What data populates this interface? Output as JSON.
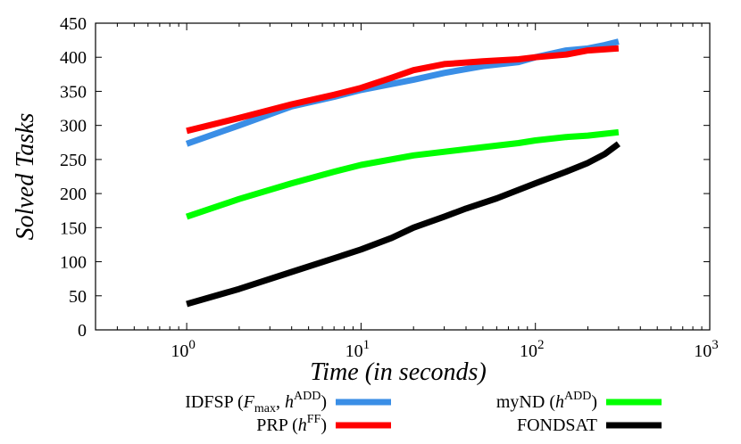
{
  "chart_data": {
    "type": "line",
    "title": "",
    "xlabel": "Time (in seconds)",
    "ylabel": "Solved Tasks",
    "xscale": "log",
    "xlim": [
      0.3,
      1000
    ],
    "ylim": [
      0,
      450
    ],
    "xticks": [
      {
        "value": 1,
        "base": "10",
        "exp": "0"
      },
      {
        "value": 10,
        "base": "10",
        "exp": "1"
      },
      {
        "value": 100,
        "base": "10",
        "exp": "2"
      },
      {
        "value": 1000,
        "base": "10",
        "exp": "3"
      }
    ],
    "yticks": [
      0,
      50,
      100,
      150,
      200,
      250,
      300,
      350,
      400,
      450
    ],
    "grid": false,
    "legend_position": "bottom",
    "series": [
      {
        "name": "IDFSP (Fmax, hADD)",
        "legend_parts": [
          "IDFSP (",
          "F",
          "max",
          ", ",
          "h",
          "ADD",
          ")"
        ],
        "color": "#3a8ee6",
        "x": [
          1,
          2,
          4,
          7,
          10,
          20,
          30,
          50,
          80,
          100,
          150,
          200,
          250,
          300
        ],
        "y": [
          273,
          300,
          328,
          342,
          352,
          367,
          377,
          387,
          393,
          400,
          410,
          413,
          418,
          423
        ]
      },
      {
        "name": "PRP (hFF)",
        "legend_parts": [
          "PRP (",
          "h",
          "FF",
          ")"
        ],
        "color": "#ff0000",
        "x": [
          1,
          2,
          4,
          7,
          10,
          15,
          20,
          30,
          50,
          80,
          100,
          150,
          200,
          300
        ],
        "y": [
          292,
          311,
          331,
          345,
          355,
          370,
          381,
          390,
          394,
          397,
          400,
          404,
          410,
          413
        ]
      },
      {
        "name": "myND (hADD)",
        "legend_parts": [
          "myND (",
          "h",
          "ADD",
          ")"
        ],
        "color": "#00ff00",
        "x": [
          1,
          2,
          4,
          7,
          10,
          20,
          50,
          80,
          100,
          150,
          200,
          300
        ],
        "y": [
          166,
          192,
          215,
          232,
          242,
          256,
          268,
          274,
          278,
          283,
          285,
          290
        ]
      },
      {
        "name": "FONDSAT",
        "legend_parts": [
          "FONDSAT"
        ],
        "color": "#000000",
        "x": [
          1,
          2,
          4,
          7,
          10,
          15,
          20,
          30,
          40,
          60,
          100,
          150,
          200,
          250,
          300
        ],
        "y": [
          38,
          60,
          85,
          105,
          118,
          135,
          150,
          166,
          178,
          193,
          215,
          232,
          245,
          258,
          273
        ]
      }
    ]
  }
}
